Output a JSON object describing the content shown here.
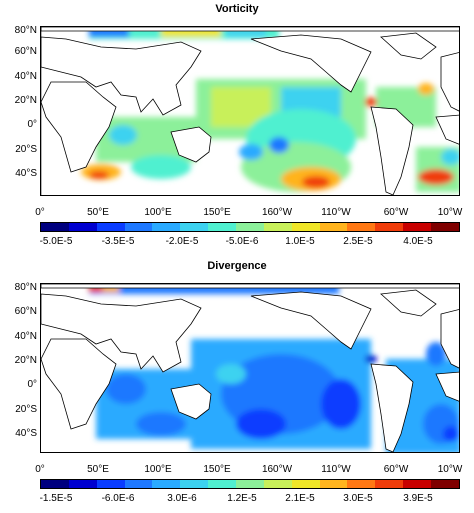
{
  "panels": [
    {
      "id": "vorticity",
      "title": "Vorticity",
      "colorbar_labels": [
        "-5.0E-5",
        "-3.5E-5",
        "-2.0E-5",
        "-5.0E-6",
        "1.0E-5",
        "2.5E-5",
        "4.0E-5"
      ]
    },
    {
      "id": "divergence",
      "title": "Divergence",
      "colorbar_labels": [
        "-1.5E-5",
        "-6.0E-6",
        "3.0E-6",
        "1.2E-5",
        "2.1E-5",
        "3.0E-5",
        "3.9E-5"
      ]
    }
  ],
  "axes": {
    "lat_labels": [
      "80°N",
      "60°N",
      "40°N",
      "20°N",
      "0°",
      "20°S",
      "40°S"
    ],
    "lon_labels": [
      "0°",
      "50°E",
      "100°E",
      "150°E",
      "160°W",
      "110°W",
      "60°W",
      "10°W"
    ]
  },
  "colors": {
    "colorbar": [
      "#00007f",
      "#0000d0",
      "#0a3cff",
      "#1e78ff",
      "#2aaaff",
      "#3cd2f0",
      "#50f0d0",
      "#8cf09a",
      "#c8f05a",
      "#f0e628",
      "#ffb41e",
      "#ff7814",
      "#f03c0a",
      "#c80000",
      "#7f0000"
    ],
    "land_outline": "#000000"
  }
}
